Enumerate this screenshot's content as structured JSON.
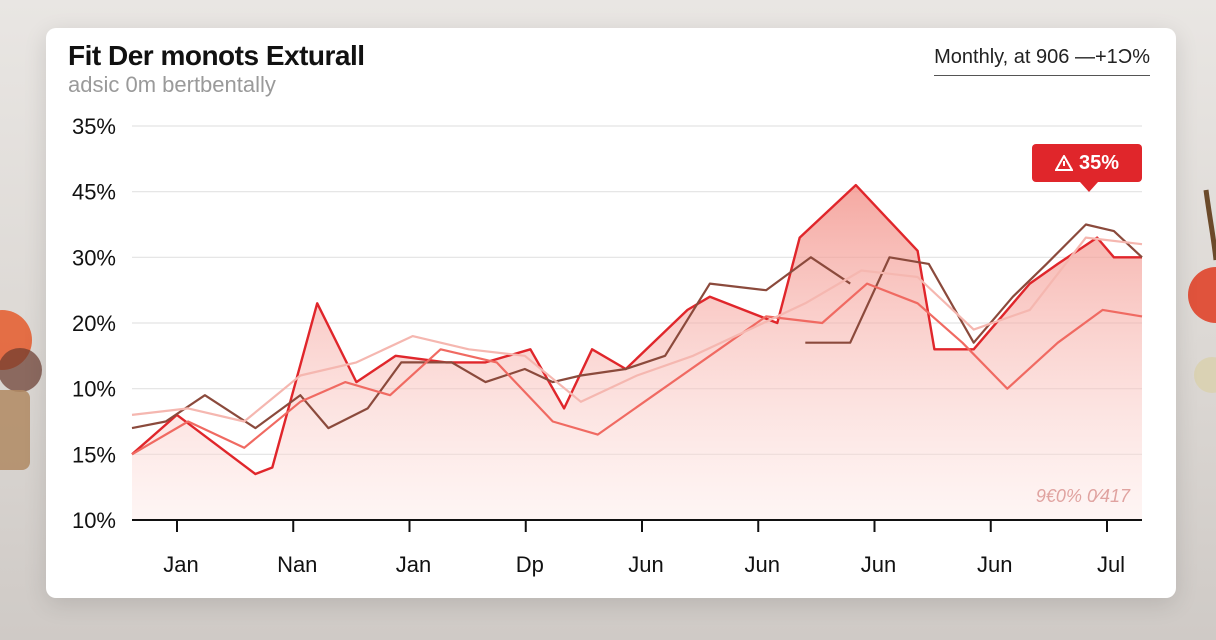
{
  "header": {
    "title": "Fit Der monots Exturall",
    "subtitle": "adsic 0m bertbentally",
    "legend_note": "Monthly, at 906 —+1Ͻ%"
  },
  "badge": {
    "label": "35%",
    "icon": "warning-triangle-icon",
    "color": "#e0262b"
  },
  "footnote": "9€0% 0⁄417",
  "chart_data": {
    "type": "area",
    "title": "Fit Der monots Exturall",
    "subtitle": "adsic 0m bertbentally",
    "x_tick_labels": [
      "Jan",
      "Nan",
      "Jan",
      "Dp",
      "Jun",
      "Jun",
      "Jun",
      "Jun",
      "Jul"
    ],
    "y_tick_labels": [
      "10%",
      "15%",
      "10%",
      "20%",
      "30%",
      "45%",
      "35%"
    ],
    "y_tick_positions": [
      0,
      1,
      2,
      3,
      4,
      5,
      6
    ],
    "ylim": [
      0,
      6
    ],
    "xlim": [
      0,
      18
    ],
    "grid": true,
    "colors": {
      "red": "#e0262b",
      "brown": "#8b4a3c",
      "light_red": "#f06a62",
      "pale": "#f5b7b0",
      "fill": "#f8c8c3"
    },
    "series": [
      {
        "style": "area-line",
        "color": "#e0262b",
        "x": [
          0,
          0.8,
          2.2,
          2.5,
          3.3,
          4.0,
          4.7,
          5.6,
          6.3,
          7.1,
          7.7,
          8.2,
          8.8,
          9.9,
          10.3,
          11.5,
          11.9,
          12.9,
          14.0,
          14.3,
          15.0,
          16.0,
          16.5,
          17.2,
          17.5,
          18.3
        ],
        "y": [
          1.0,
          1.6,
          0.7,
          0.8,
          3.3,
          2.1,
          2.5,
          2.4,
          2.4,
          2.6,
          1.7,
          2.6,
          2.3,
          3.2,
          3.4,
          3.0,
          4.3,
          5.1,
          4.1,
          2.6,
          2.6,
          3.6,
          3.9,
          4.3,
          4.0,
          4.0
        ]
      },
      {
        "style": "line",
        "color": "#8b4a3c",
        "x": [
          0,
          0.6,
          1.3,
          2.2,
          3.0,
          3.5,
          4.2,
          4.8,
          5.7,
          6.3,
          7.0,
          7.5,
          8.0,
          8.8,
          9.5,
          10.3,
          11.3,
          12.1,
          12.8
        ],
        "y": [
          1.4,
          1.5,
          1.9,
          1.4,
          1.9,
          1.4,
          1.7,
          2.4,
          2.4,
          2.1,
          2.3,
          2.1,
          2.2,
          2.3,
          2.5,
          3.6,
          3.5,
          4.0,
          3.6
        ]
      },
      {
        "style": "line",
        "color": "#8b4a3c",
        "x": [
          12.0,
          12.8,
          13.5,
          14.2,
          15.0,
          15.7,
          16.3,
          17.0,
          17.5,
          18.3
        ],
        "y": [
          2.7,
          2.7,
          4.0,
          3.9,
          2.7,
          3.4,
          3.9,
          4.5,
          4.4,
          4.0
        ]
      },
      {
        "style": "line",
        "color": "#f06a62",
        "x": [
          0,
          1.0,
          2.0,
          3.0,
          3.8,
          4.6,
          5.5,
          6.5,
          7.5,
          8.3,
          9.3,
          10.3,
          11.3,
          12.3,
          13.1,
          14.0,
          14.8,
          15.6,
          16.5,
          17.3,
          18.3
        ],
        "y": [
          1.0,
          1.5,
          1.1,
          1.8,
          2.1,
          1.9,
          2.6,
          2.4,
          1.5,
          1.3,
          1.9,
          2.5,
          3.1,
          3.0,
          3.6,
          3.3,
          2.7,
          2.0,
          2.7,
          3.2,
          3.1
        ]
      },
      {
        "style": "line",
        "color": "#f5b7b0",
        "x": [
          0,
          1.0,
          2.0,
          3.0,
          4.0,
          5.0,
          6.0,
          7.0,
          8.0,
          9.0,
          10.0,
          11.0,
          12.0,
          13.0,
          14.0,
          15.0,
          16.0,
          17.0,
          18.3
        ],
        "y": [
          1.6,
          1.7,
          1.5,
          2.2,
          2.4,
          2.8,
          2.6,
          2.5,
          1.8,
          2.2,
          2.5,
          2.9,
          3.3,
          3.8,
          3.7,
          2.9,
          3.2,
          4.3,
          4.2
        ]
      }
    ]
  }
}
